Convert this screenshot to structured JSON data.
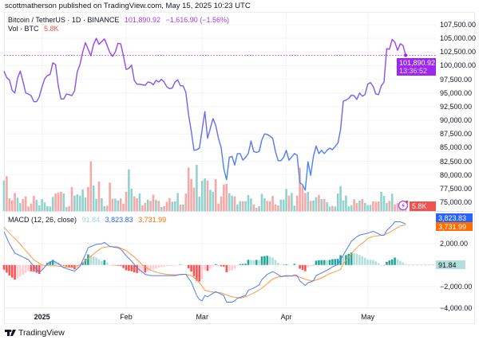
{
  "header": {
    "publisher_line": "scottmatherson published on TradingView.com, May 15, 2025 10:23 UTC"
  },
  "legend": {
    "symbol": "Bitcoin / TetherUS · 1D · BINANCE",
    "last_price": "101,890.92",
    "change": "−1,616.90 (−1.56%)",
    "volume_label": "Vol · BTC",
    "volume_value": "5.8K",
    "macd_label": "MACD (12, 26, close)",
    "macd_hist": "91.84",
    "macd_value": "3,823.83",
    "macd_signal": "3,731.99"
  },
  "badges": {
    "price": "101,890.92",
    "countdown": "13:36:52",
    "volume": "5.8K",
    "macd": "3,823.83",
    "signal": "3,731.99",
    "hist": "91.84"
  },
  "colors": {
    "line_high": "#a23cf5",
    "line_low": "#3a8ef6",
    "price_badge": "#9c27f0",
    "vol_up": "#92d2cc",
    "vol_down": "#f7a9a7",
    "vol_badge": "#ef5350",
    "macd": "#4f7cf7",
    "signal": "#ff9a3c",
    "hist_up_strong": "#26a69a",
    "hist_up_weak": "#b2dfdb",
    "hist_down_strong": "#ff5252",
    "hist_down_weak": "#ffcdd2"
  },
  "footer": {
    "logo_text": "TradingView",
    "logo_icon": "tradingview-logo-icon"
  },
  "alert_icon": "lightning-alert-icon",
  "chart_data": [
    {
      "type": "line",
      "pane": "price",
      "x_range": [
        "2024-12-18",
        "2025-05-15"
      ],
      "x_interval": "1D",
      "ylim": [
        75000,
        107500
      ],
      "y_scale": "linear",
      "grid": true,
      "y_ticks": [
        "107,500.00",
        "105,000.00",
        "102,500.00",
        "100,000.00",
        "97,500.00",
        "95,000.00",
        "92,500.00",
        "90,000.00",
        "87,500.00",
        "85,000.00",
        "82,500.00",
        "80,000.00",
        "77,500.00",
        "75,000.00"
      ],
      "y_tick_values": [
        107500,
        105000,
        102500,
        100000,
        97500,
        95000,
        92500,
        90000,
        87500,
        85000,
        82500,
        80000,
        77500,
        75000
      ],
      "x_ticks": [
        {
          "label": "2025",
          "date": "2025-01-01",
          "bold": true
        },
        {
          "label": "Feb",
          "date": "2025-02-01"
        },
        {
          "label": "Mar",
          "date": "2025-03-01"
        },
        {
          "label": "Apr",
          "date": "2025-04-01"
        },
        {
          "label": "May",
          "date": "2025-05-01"
        }
      ],
      "closes": [
        99000,
        97800,
        97400,
        95500,
        95000,
        97700,
        99000,
        97100,
        95000,
        94800,
        94500,
        93400,
        93400,
        94300,
        96100,
        97600,
        98200,
        98400,
        100500,
        100200,
        96300,
        93900,
        93900,
        94800,
        94700,
        94500,
        95400,
        98900,
        100200,
        102500,
        104200,
        103000,
        101800,
        103900,
        105000,
        103900,
        104400,
        104900,
        103700,
        102400,
        101700,
        102500,
        104100,
        104000,
        101800,
        99300,
        99500,
        100100,
        97300,
        96600,
        96600,
        96500,
        96400,
        97000,
        96900,
        96500,
        97300,
        97000,
        97500,
        97000,
        96100,
        95800,
        95900,
        97000,
        97400,
        96300,
        96300,
        95100,
        91000,
        88000,
        84500,
        84600,
        84900,
        88300,
        91600,
        86700,
        88500,
        90300,
        89100,
        86700,
        85000,
        81100,
        79100,
        83200,
        83400,
        81800,
        83900,
        83900,
        82700,
        83200,
        83900,
        86200,
        84300,
        84100,
        84300,
        86400,
        87500,
        87400,
        87100,
        86700,
        84300,
        82600,
        82600,
        83200,
        84500,
        82700,
        83300,
        83900,
        83600,
        78600,
        78200,
        77200,
        82400,
        79900,
        83400,
        85300,
        83900,
        84500,
        83900,
        84500,
        84900,
        84600,
        85200,
        85800,
        88300,
        93500,
        93700,
        94000,
        94600,
        94500,
        93800,
        95000,
        94400,
        94700,
        96600,
        96900,
        96200,
        94800,
        94700,
        96300,
        97000,
        103100,
        103000,
        104800,
        104300,
        102800,
        104000,
        103700,
        101890.92
      ],
      "last_price": 101890.92
    },
    {
      "type": "bar",
      "pane": "volume",
      "unit": "K BTC",
      "values": [
        57.5,
        65.5,
        24,
        20,
        34,
        25,
        15,
        22.5,
        27.5,
        8.5,
        14,
        28.5,
        21,
        10.5,
        22.5,
        16,
        9,
        8.5,
        26.5,
        33,
        35,
        36,
        33,
        7.5,
        9,
        45,
        29,
        31.5,
        29,
        40.5,
        25.5,
        45,
        93.5,
        48,
        23,
        55.5,
        24,
        9,
        10,
        53.5,
        23,
        23.5,
        20,
        23.5,
        13.5,
        36,
        78.5,
        42,
        27.5,
        24,
        33,
        10.5,
        15,
        21.5,
        19,
        30.5,
        21,
        19,
        7.5,
        9,
        17.5,
        24.5,
        17.5,
        18,
        34,
        12,
        12,
        33,
        82,
        60,
        44,
        87,
        27,
        57,
        61.5,
        57.5,
        40,
        36,
        60,
        14,
        27.5,
        50,
        51,
        33.5,
        29,
        27.5,
        12.5,
        18.5,
        18.5,
        18.5,
        30,
        23.5,
        12.5,
        6,
        9,
        32.5,
        24,
        19,
        18.5,
        28.5,
        12,
        10.5,
        21.5,
        21.5,
        41.5,
        29,
        34,
        10,
        29,
        81.5,
        47.5,
        34,
        36,
        19,
        20,
        26,
        30.5,
        22.5,
        22.5,
        16.5,
        8.5,
        9.5,
        8.5,
        33,
        46.5,
        20,
        29,
        9,
        11,
        22,
        15,
        19.5,
        22.5,
        15,
        11,
        11.5,
        18,
        17.5,
        18,
        36,
        28.5,
        15,
        19,
        32.5,
        12.5,
        15,
        12,
        10,
        5.8
      ]
    },
    {
      "type": "line",
      "pane": "macd",
      "title": "MACD (12, 26, close)",
      "ylim": [
        -4000,
        4500
      ],
      "y_ticks": [
        "2,000.00",
        "−2,000.00",
        "−4,000.00"
      ],
      "y_tick_values": [
        2000,
        -2000,
        -4000
      ],
      "series": [
        {
          "key": "macd",
          "points": [
            [
              "2024-12-18",
              3080
            ],
            [
              "2024-12-20",
              1970
            ],
            [
              "2024-12-22",
              1110
            ],
            [
              "2024-12-24",
              860
            ],
            [
              "2024-12-27",
              490
            ],
            [
              "2024-12-29",
              -120
            ],
            [
              "2024-12-31",
              -670
            ],
            [
              "2025-01-01",
              -490
            ],
            [
              "2025-01-03",
              120
            ],
            [
              "2025-01-05",
              410
            ],
            [
              "2025-01-07",
              120
            ],
            [
              "2025-01-09",
              -250
            ],
            [
              "2025-01-11",
              -420
            ],
            [
              "2025-01-13",
              -570
            ],
            [
              "2025-01-15",
              -120
            ],
            [
              "2025-01-17",
              980
            ],
            [
              "2025-01-18",
              1600
            ],
            [
              "2025-01-21",
              1920
            ],
            [
              "2025-01-23",
              1970
            ],
            [
              "2025-01-24",
              2100
            ],
            [
              "2025-01-26",
              1720
            ],
            [
              "2025-01-29",
              1600
            ],
            [
              "2025-01-30",
              1480
            ],
            [
              "2025-02-01",
              860
            ],
            [
              "2025-02-03",
              360
            ],
            [
              "2025-02-05",
              -250
            ],
            [
              "2025-02-08",
              -870
            ],
            [
              "2025-02-10",
              -990
            ],
            [
              "2025-02-13",
              -990
            ],
            [
              "2025-02-16",
              -990
            ],
            [
              "2025-02-19",
              -990
            ],
            [
              "2025-02-21",
              -870
            ],
            [
              "2025-02-23",
              -870
            ],
            [
              "2025-02-25",
              -1600
            ],
            [
              "2025-02-27",
              -2840
            ],
            [
              "2025-02-28",
              -3210
            ],
            [
              "2025-03-01",
              -3330
            ],
            [
              "2025-03-02",
              -2840
            ],
            [
              "2025-03-03",
              -2960
            ],
            [
              "2025-03-04",
              -2790
            ],
            [
              "2025-03-06",
              -2470
            ],
            [
              "2025-03-07",
              -2590
            ],
            [
              "2025-03-09",
              -2840
            ],
            [
              "2025-03-10",
              -3460
            ],
            [
              "2025-03-12",
              -3460
            ],
            [
              "2025-03-13",
              -3330
            ],
            [
              "2025-03-14",
              -3090
            ],
            [
              "2025-03-17",
              -2840
            ],
            [
              "2025-03-18",
              -2350
            ],
            [
              "2025-03-20",
              -2150
            ],
            [
              "2025-03-22",
              -1850
            ],
            [
              "2025-03-23",
              -1360
            ],
            [
              "2025-03-25",
              -870
            ],
            [
              "2025-03-27",
              -620
            ],
            [
              "2025-03-28",
              -740
            ],
            [
              "2025-03-30",
              -1070
            ],
            [
              "2025-04-01",
              -990
            ],
            [
              "2025-04-03",
              -1020
            ],
            [
              "2025-04-04",
              -920
            ],
            [
              "2025-04-05",
              -990
            ],
            [
              "2025-04-06",
              -1480
            ],
            [
              "2025-04-08",
              -1900
            ],
            [
              "2025-04-09",
              -1660
            ],
            [
              "2025-04-11",
              -1480
            ],
            [
              "2025-04-12",
              -990
            ],
            [
              "2025-04-14",
              -740
            ],
            [
              "2025-04-16",
              -490
            ],
            [
              "2025-04-18",
              -180
            ],
            [
              "2025-04-20",
              50
            ],
            [
              "2025-04-21",
              490
            ],
            [
              "2025-04-23",
              1350
            ],
            [
              "2025-04-25",
              2220
            ],
            [
              "2025-04-27",
              2630
            ],
            [
              "2025-04-28",
              2780
            ],
            [
              "2025-05-01",
              2960
            ],
            [
              "2025-05-03",
              3130
            ],
            [
              "2025-05-04",
              3030
            ],
            [
              "2025-05-06",
              2760
            ],
            [
              "2025-05-07",
              2760
            ],
            [
              "2025-05-08",
              3200
            ],
            [
              "2025-05-10",
              3700
            ],
            [
              "2025-05-11",
              4020
            ],
            [
              "2025-05-13",
              4020
            ],
            [
              "2025-05-15",
              3823.83
            ]
          ]
        },
        {
          "key": "signal",
          "points": [
            [
              "2024-12-18",
              3520
            ],
            [
              "2024-12-20",
              2960
            ],
            [
              "2024-12-23",
              2220
            ],
            [
              "2024-12-26",
              1350
            ],
            [
              "2024-12-29",
              490
            ],
            [
              "2025-01-01",
              0
            ],
            [
              "2025-01-03",
              -70
            ],
            [
              "2025-01-06",
              -70
            ],
            [
              "2025-01-09",
              -180
            ],
            [
              "2025-01-12",
              -250
            ],
            [
              "2025-01-15",
              0
            ],
            [
              "2025-01-18",
              610
            ],
            [
              "2025-01-21",
              1230
            ],
            [
              "2025-01-23",
              1600
            ],
            [
              "2025-01-26",
              1720
            ],
            [
              "2025-01-29",
              1670
            ],
            [
              "2025-02-01",
              1350
            ],
            [
              "2025-02-04",
              740
            ],
            [
              "2025-02-07",
              0
            ],
            [
              "2025-02-10",
              -490
            ],
            [
              "2025-02-13",
              -740
            ],
            [
              "2025-02-16",
              -870
            ],
            [
              "2025-02-19",
              -920
            ],
            [
              "2025-02-23",
              -870
            ],
            [
              "2025-02-25",
              -990
            ],
            [
              "2025-02-27",
              -1360
            ],
            [
              "2025-03-01",
              -1980
            ],
            [
              "2025-03-02",
              -2350
            ],
            [
              "2025-03-04",
              -2470
            ],
            [
              "2025-03-06",
              -2550
            ],
            [
              "2025-03-08",
              -2590
            ],
            [
              "2025-03-10",
              -2790
            ],
            [
              "2025-03-12",
              -2960
            ],
            [
              "2025-03-14",
              -3030
            ],
            [
              "2025-03-15",
              -3090
            ],
            [
              "2025-03-17",
              -2960
            ],
            [
              "2025-03-19",
              -2720
            ],
            [
              "2025-03-21",
              -2470
            ],
            [
              "2025-03-23",
              -2150
            ],
            [
              "2025-03-25",
              -1730
            ],
            [
              "2025-03-27",
              -1310
            ],
            [
              "2025-03-29",
              -1110
            ],
            [
              "2025-03-31",
              -1070
            ],
            [
              "2025-04-03",
              -1020
            ],
            [
              "2025-04-05",
              -1040
            ],
            [
              "2025-04-07",
              -1230
            ],
            [
              "2025-04-09",
              -1410
            ],
            [
              "2025-04-11",
              -1480
            ],
            [
              "2025-04-13",
              -1310
            ],
            [
              "2025-04-15",
              -1070
            ],
            [
              "2025-04-17",
              -810
            ],
            [
              "2025-04-19",
              -620
            ],
            [
              "2025-04-21",
              -420
            ],
            [
              "2025-04-22",
              120
            ],
            [
              "2025-04-24",
              740
            ],
            [
              "2025-04-26",
              1350
            ],
            [
              "2025-04-28",
              1850
            ],
            [
              "2025-04-30",
              2220
            ],
            [
              "2025-05-01",
              2460
            ],
            [
              "2025-05-03",
              2660
            ],
            [
              "2025-05-06",
              2760
            ],
            [
              "2025-05-07",
              2780
            ],
            [
              "2025-05-09",
              3030
            ],
            [
              "2025-05-11",
              3330
            ],
            [
              "2025-05-13",
              3630
            ],
            [
              "2025-05-15",
              3731.99
            ]
          ]
        }
      ],
      "histogram": "macd minus signal"
    }
  ]
}
